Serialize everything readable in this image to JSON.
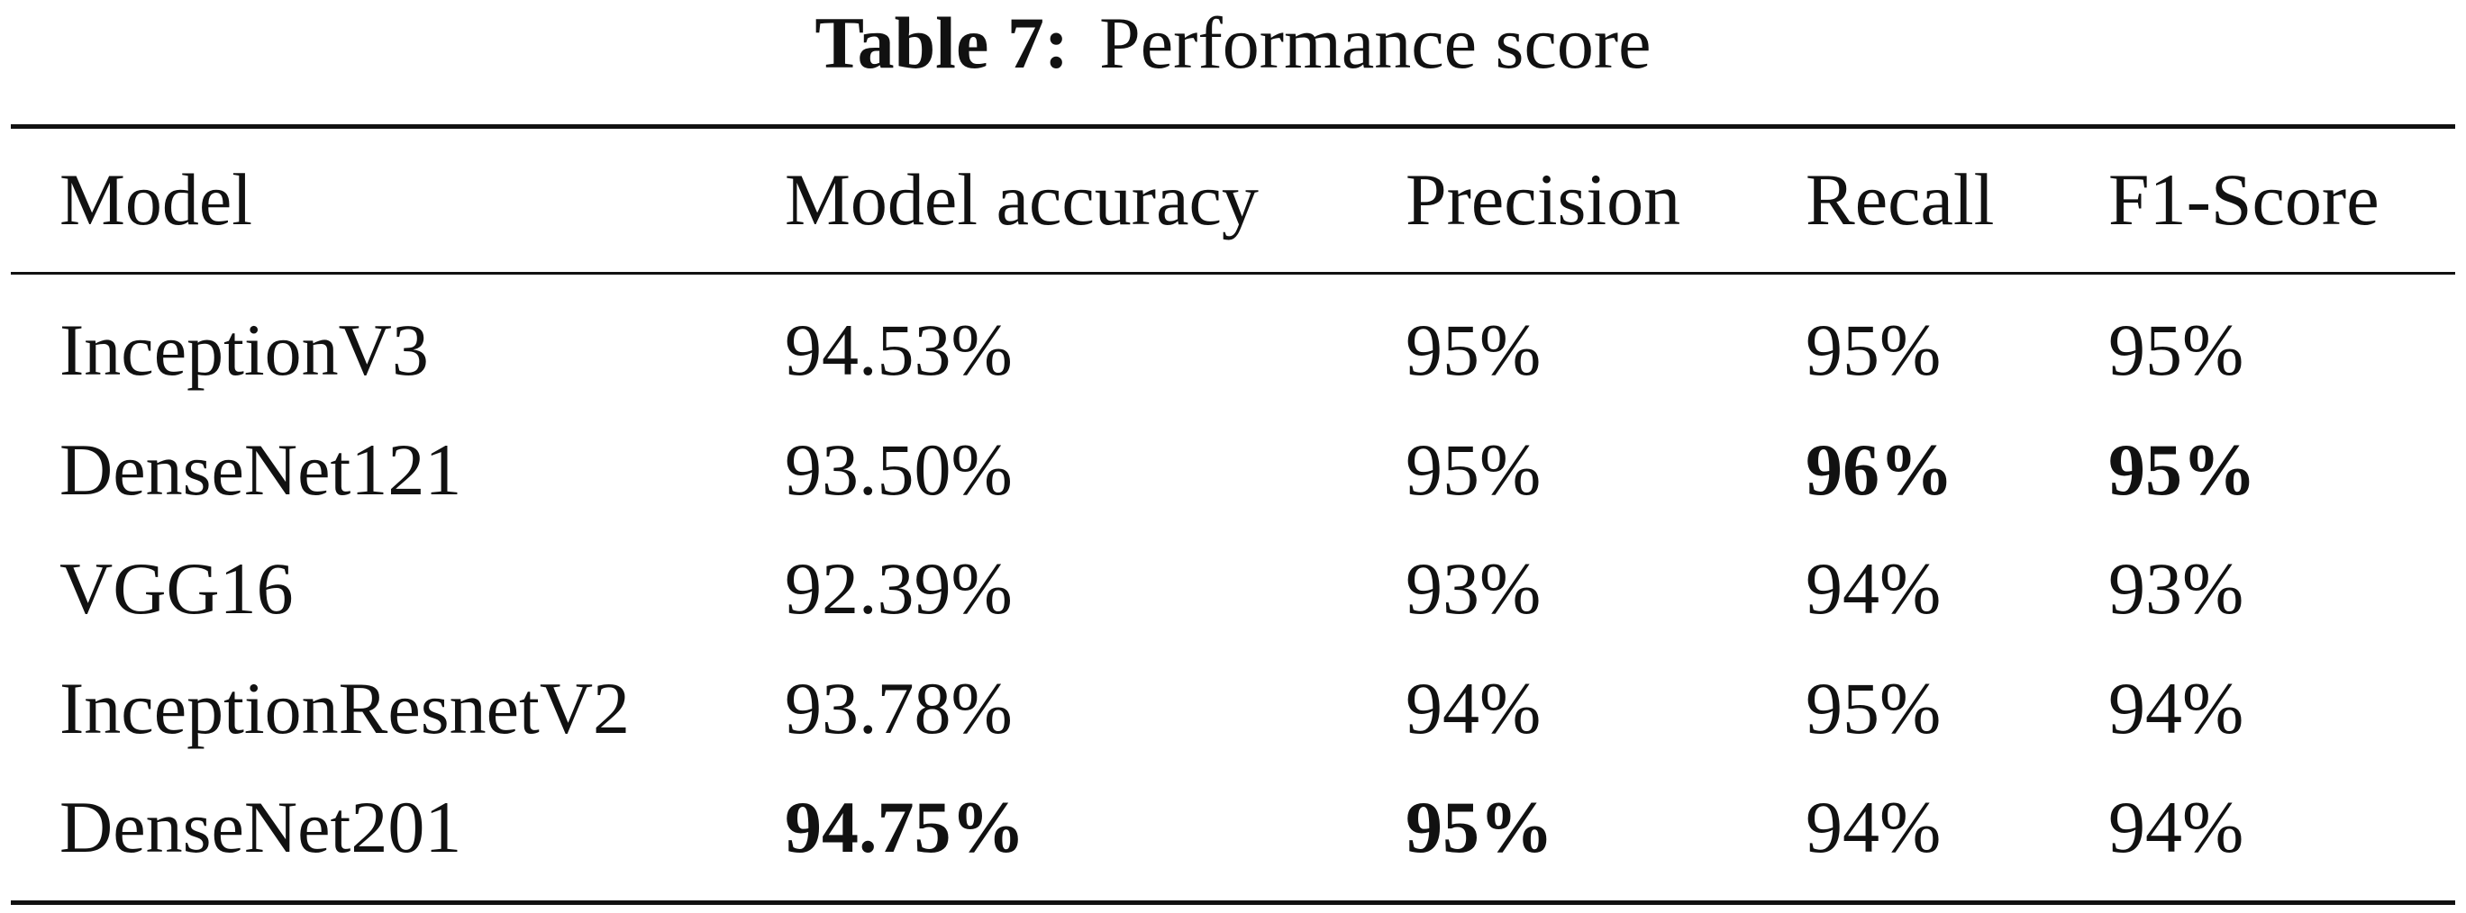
{
  "caption": {
    "label": "Table 7:",
    "title": "Performance score"
  },
  "table": {
    "headers": [
      "Model",
      "Model accuracy",
      "Precision",
      "Recall",
      "F1-Score"
    ],
    "rows": [
      {
        "model": "InceptionV3",
        "accuracy": "94.53%",
        "precision": "95%",
        "recall": "95%",
        "f1": "95%"
      },
      {
        "model": "DenseNet121",
        "accuracy": "93.50%",
        "precision": "95%",
        "recall": "96%",
        "f1": "95%"
      },
      {
        "model": "VGG16",
        "accuracy": "92.39%",
        "precision": "93%",
        "recall": "94%",
        "f1": "93%"
      },
      {
        "model": "InceptionResnetV2",
        "accuracy": "93.78%",
        "precision": "94%",
        "recall": "95%",
        "f1": "94%"
      },
      {
        "model": "DenseNet201",
        "accuracy": "94.75%",
        "precision": "95%",
        "recall": "94%",
        "f1": "94%"
      }
    ]
  }
}
